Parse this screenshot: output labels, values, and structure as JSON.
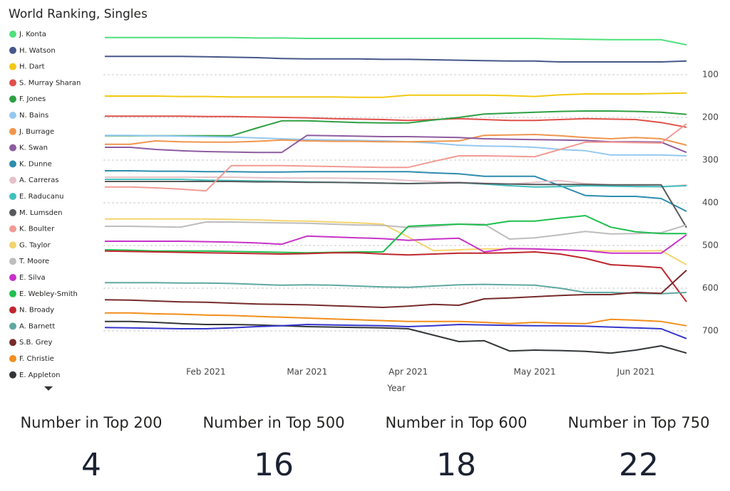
{
  "chart_data": {
    "type": "line",
    "title": "World Ranking, Singles",
    "x_label": "Year",
    "categories": [
      null,
      null,
      null,
      null,
      "Feb 2021",
      null,
      null,
      null,
      "Mar 2021",
      null,
      null,
      null,
      "Apr 2021",
      null,
      null,
      null,
      null,
      "May 2021",
      null,
      null,
      null,
      "Jun 2021",
      null,
      null
    ],
    "ylim": [
      0,
      770
    ],
    "y_reversed": true,
    "yticks": [
      100,
      200,
      300,
      400,
      500,
      600,
      700
    ],
    "grid": true,
    "legend": "left",
    "series": [
      {
        "name": "J. Konta",
        "color": "#4ee07a",
        "values": [
          13,
          13,
          13,
          13,
          13,
          13,
          14,
          14,
          15,
          15,
          15,
          15,
          15,
          15,
          15,
          15,
          15,
          15,
          16,
          17,
          18,
          18,
          18,
          30
        ]
      },
      {
        "name": "H. Watson",
        "color": "#46588a",
        "values": [
          57,
          57,
          57,
          57,
          58,
          59,
          60,
          62,
          63,
          63,
          63,
          64,
          64,
          65,
          66,
          67,
          68,
          68,
          70,
          70,
          70,
          70,
          70,
          68
        ]
      },
      {
        "name": "H. Dart",
        "color": "#f2c811",
        "values": [
          150,
          150,
          150,
          151,
          151,
          152,
          152,
          152,
          152,
          152,
          153,
          153,
          148,
          148,
          148,
          148,
          149,
          151,
          147,
          145,
          145,
          145,
          144,
          143
        ]
      },
      {
        "name": "S. Murray Sharan",
        "color": "#e0504a",
        "values": [
          197,
          197,
          197,
          197,
          198,
          198,
          199,
          200,
          201,
          203,
          204,
          205,
          207,
          205,
          203,
          205,
          207,
          207,
          205,
          203,
          204,
          205,
          212,
          223
        ]
      },
      {
        "name": "F. Jones",
        "color": "#2ea043",
        "values": [
          243,
          243,
          243,
          243,
          243,
          243,
          225,
          208,
          208,
          210,
          212,
          213,
          213,
          206,
          200,
          192,
          190,
          188,
          186,
          185,
          185,
          186,
          188,
          193
        ]
      },
      {
        "name": "N. Bains",
        "color": "#94c8f0",
        "values": [
          242,
          242,
          243,
          244,
          245,
          246,
          248,
          250,
          252,
          253,
          254,
          255,
          257,
          260,
          265,
          267,
          268,
          270,
          275,
          278,
          288,
          288,
          288,
          290
        ]
      },
      {
        "name": "J. Burrage",
        "color": "#f0954e",
        "values": [
          263,
          263,
          255,
          257,
          258,
          258,
          256,
          253,
          255,
          256,
          256,
          257,
          257,
          256,
          255,
          242,
          241,
          240,
          243,
          247,
          250,
          247,
          250,
          265
        ]
      },
      {
        "name": "K. Swan",
        "color": "#8e5ba0",
        "values": [
          270,
          270,
          275,
          278,
          280,
          281,
          282,
          282,
          242,
          243,
          244,
          245,
          245,
          246,
          247,
          250,
          251,
          252,
          253,
          254,
          257,
          257,
          258,
          282
        ]
      },
      {
        "name": "K. Dunne",
        "color": "#2e8cae",
        "values": [
          325,
          325,
          326,
          326,
          327,
          327,
          328,
          328,
          327,
          327,
          327,
          327,
          327,
          330,
          332,
          338,
          338,
          338,
          360,
          383,
          385,
          385,
          390,
          420
        ]
      },
      {
        "name": "A. Carreras",
        "color": "#e6c2c8",
        "values": [
          340,
          340,
          340,
          340,
          340,
          340,
          341,
          342,
          342,
          342,
          343,
          344,
          348,
          350,
          352,
          354,
          356,
          352,
          348,
          355,
          358,
          360,
          363,
          358
        ]
      },
      {
        "name": "E. Raducanu",
        "color": "#3fbfbd",
        "values": [
          345,
          345,
          345,
          345,
          347,
          348,
          349,
          350,
          351,
          352,
          353,
          354,
          355,
          354,
          353,
          356,
          360,
          363,
          362,
          360,
          361,
          362,
          362,
          360
        ]
      },
      {
        "name": "M. Lumsden",
        "color": "#565a5c",
        "values": [
          350,
          350,
          350,
          350,
          350,
          350,
          351,
          351,
          352,
          352,
          353,
          354,
          355,
          354,
          353,
          355,
          356,
          357,
          357,
          357,
          358,
          358,
          358,
          458
        ]
      },
      {
        "name": "K. Boulter",
        "color": "#f29a94",
        "values": [
          363,
          363,
          365,
          368,
          372,
          313,
          313,
          313,
          314,
          315,
          316,
          317,
          317,
          303,
          290,
          290,
          291,
          292,
          275,
          258,
          258,
          259,
          260,
          215
        ]
      },
      {
        "name": "G. Taylor",
        "color": "#f5d46e",
        "values": [
          438,
          438,
          438,
          438,
          438,
          439,
          440,
          442,
          443,
          445,
          447,
          450,
          480,
          512,
          510,
          508,
          508,
          508,
          510,
          512,
          513,
          513,
          512,
          545
        ]
      },
      {
        "name": "T. Moore",
        "color": "#bdbdbd",
        "values": [
          455,
          455,
          456,
          457,
          445,
          445,
          446,
          447,
          448,
          450,
          452,
          453,
          458,
          455,
          450,
          450,
          485,
          482,
          475,
          467,
          473,
          472,
          470,
          452
        ]
      },
      {
        "name": "E. Silva",
        "color": "#c832c8",
        "values": [
          490,
          490,
          490,
          490,
          491,
          492,
          494,
          497,
          478,
          480,
          482,
          484,
          488,
          485,
          483,
          515,
          507,
          508,
          510,
          512,
          518,
          518,
          518,
          475
        ]
      },
      {
        "name": "E. Webley-Smith",
        "color": "#1fbf4f",
        "values": [
          510,
          511,
          513,
          513,
          513,
          514,
          515,
          516,
          517,
          516,
          515,
          515,
          455,
          452,
          450,
          452,
          443,
          443,
          436,
          430,
          457,
          468,
          472,
          472
        ]
      },
      {
        "name": "N. Broady",
        "color": "#c0262d",
        "values": [
          513,
          514,
          515,
          516,
          517,
          518,
          519,
          520,
          519,
          517,
          517,
          520,
          522,
          520,
          518,
          518,
          517,
          515,
          520,
          530,
          545,
          548,
          552,
          632
        ]
      },
      {
        "name": "A. Barnett",
        "color": "#5ea8a0",
        "values": [
          587,
          587,
          587,
          588,
          588,
          589,
          591,
          593,
          592,
          593,
          595,
          597,
          598,
          595,
          592,
          591,
          592,
          593,
          600,
          610,
          610,
          612,
          613,
          610
        ]
      },
      {
        "name": "S.B. Grey",
        "color": "#772b2b",
        "values": [
          627,
          628,
          630,
          632,
          633,
          635,
          637,
          638,
          639,
          641,
          643,
          645,
          642,
          638,
          640,
          625,
          623,
          620,
          617,
          615,
          615,
          610,
          612,
          558
        ]
      },
      {
        "name": "F. Christie",
        "color": "#f28e1c",
        "values": [
          658,
          658,
          660,
          661,
          663,
          664,
          666,
          668,
          670,
          672,
          674,
          676,
          678,
          678,
          678,
          680,
          683,
          680,
          682,
          683,
          673,
          675,
          678,
          688
        ]
      },
      {
        "name": "E. Appleton",
        "color": "#333638",
        "values": [
          678,
          678,
          680,
          683,
          685,
          685,
          686,
          688,
          690,
          691,
          692,
          693,
          695,
          710,
          725,
          723,
          747,
          745,
          746,
          748,
          752,
          745,
          735,
          752
        ]
      },
      {
        "name": null,
        "color": "#3535cc",
        "values": [
          692,
          693,
          694,
          695,
          695,
          693,
          690,
          688,
          685,
          686,
          687,
          688,
          690,
          688,
          685,
          686,
          687,
          688,
          688,
          689,
          691,
          693,
          695,
          718
        ]
      }
    ]
  },
  "cards": [
    {
      "label": "Number in Top 200",
      "value": 4
    },
    {
      "label": "Number in Top 500",
      "value": 16
    },
    {
      "label": "Number in Top 600",
      "value": 18
    },
    {
      "label": "Number in Top 750",
      "value": 22
    }
  ]
}
